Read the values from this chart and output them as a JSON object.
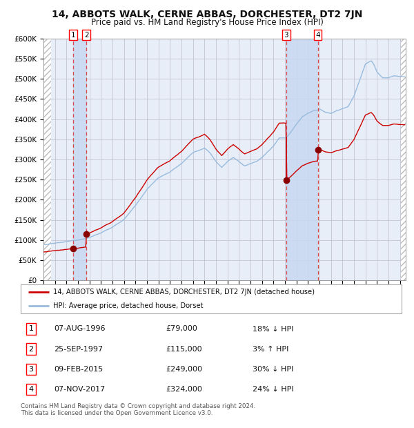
{
  "title": "14, ABBOTS WALK, CERNE ABBAS, DORCHESTER, DT2 7JN",
  "subtitle": "Price paid vs. HM Land Registry's House Price Index (HPI)",
  "legend_label_red": "14, ABBOTS WALK, CERNE ABBAS, DORCHESTER, DT2 7JN (detached house)",
  "legend_label_blue": "HPI: Average price, detached house, Dorset",
  "footer": "Contains HM Land Registry data © Crown copyright and database right 2024.\nThis data is licensed under the Open Government Licence v3.0.",
  "transactions": [
    {
      "num": 1,
      "date": "07-AUG-1996",
      "price": 79000,
      "hpi_diff": "18% ↓ HPI",
      "x_year": 1996.6
    },
    {
      "num": 2,
      "date": "25-SEP-1997",
      "price": 115000,
      "hpi_diff": "3% ↑ HPI",
      "x_year": 1997.73
    },
    {
      "num": 3,
      "date": "09-FEB-2015",
      "price": 249000,
      "hpi_diff": "30% ↓ HPI",
      "x_year": 2015.11
    },
    {
      "num": 4,
      "date": "07-NOV-2017",
      "price": 324000,
      "hpi_diff": "24% ↓ HPI",
      "x_year": 2017.85
    }
  ],
  "ylim": [
    0,
    600000
  ],
  "xlim_start": 1994.0,
  "xlim_end": 2025.5,
  "background_color": "#ffffff",
  "plot_bg_color": "#e8eef8",
  "grid_color": "#bbbbcc",
  "red_line_color": "#cc0000",
  "blue_line_color": "#99bbdd",
  "marker_color": "#880000",
  "dashed_line_color": "#dd4444",
  "transaction_shade_color": "#c8d8f0"
}
